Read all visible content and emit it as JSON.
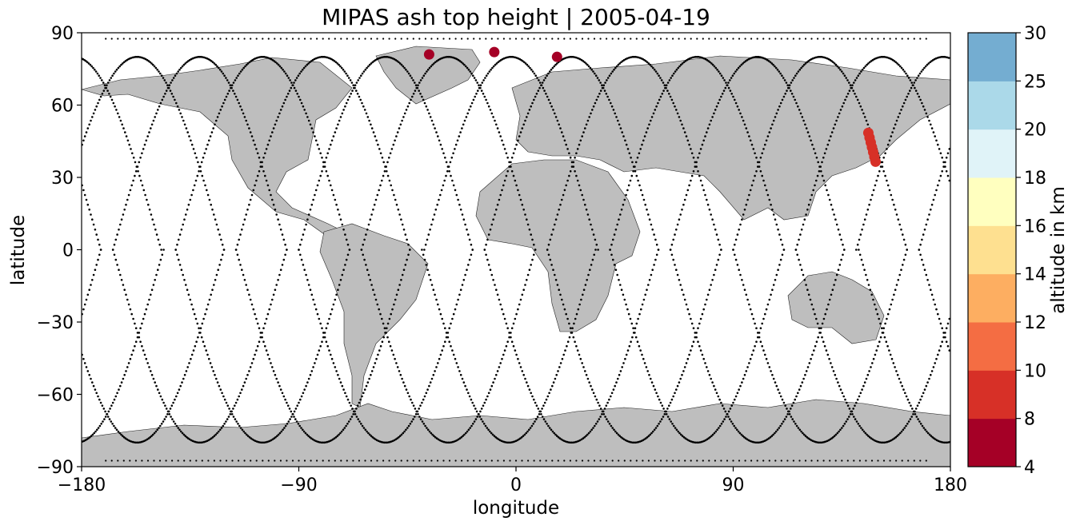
{
  "chart_data": {
    "type": "scatter",
    "title": "MIPAS ash top height | 2005-04-19",
    "xlabel": "longitude",
    "ylabel": "latitude",
    "xlim": [
      -180,
      180
    ],
    "ylim": [
      -90,
      90
    ],
    "xticks": [
      -180,
      -90,
      0,
      90,
      180
    ],
    "xtick_labels": [
      "−180",
      "−90",
      "0",
      "90",
      "180"
    ],
    "yticks": [
      -90,
      -60,
      -30,
      0,
      30,
      60,
      90
    ],
    "ytick_labels": [
      "−90",
      "−60",
      "−30",
      "0",
      "30",
      "60",
      "90"
    ],
    "grid": false,
    "basemap": "world coastlines, land filled grey",
    "land_color": "#bebebe",
    "track_color": "#000000",
    "colorbar": {
      "label": "altitude in km",
      "boundaries": [
        4,
        8,
        10,
        12,
        14,
        16,
        18,
        20,
        25,
        30
      ],
      "tick_labels": [
        "4",
        "8",
        "10",
        "12",
        "14",
        "16",
        "18",
        "20",
        "25",
        "30"
      ],
      "colors": [
        "#a50026",
        "#d73027",
        "#f46d43",
        "#fdae61",
        "#fee090",
        "#ffffbf",
        "#e0f3f8",
        "#abd9e9",
        "#74add1",
        "#4575b4",
        "#313695"
      ]
    },
    "ash_detections": [
      {
        "lon": -36,
        "lat": 81,
        "alt_km": 5
      },
      {
        "lon": -9,
        "lat": 82,
        "alt_km": 5
      },
      {
        "lon": 17,
        "lat": 80,
        "alt_km": 5
      },
      {
        "lon": 146,
        "lat": 48.5,
        "alt_km": 9
      },
      {
        "lon": 146.5,
        "lat": 46.5,
        "alt_km": 9
      },
      {
        "lon": 147,
        "lat": 44.5,
        "alt_km": 9
      },
      {
        "lon": 147.5,
        "lat": 42.5,
        "alt_km": 9
      },
      {
        "lon": 148,
        "lat": 40.5,
        "alt_km": 9
      },
      {
        "lon": 148.5,
        "lat": 38.5,
        "alt_km": 9
      },
      {
        "lon": 149,
        "lat": 36.5,
        "alt_km": 9
      }
    ],
    "ascending_tracks_start_lon": [
      -167,
      -141,
      -116,
      -90,
      -64,
      -38,
      -13,
      13,
      39,
      64,
      90,
      116,
      141,
      167
    ]
  }
}
